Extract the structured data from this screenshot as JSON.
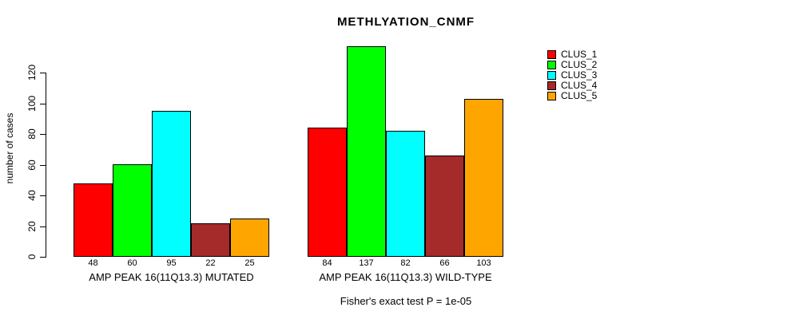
{
  "title": "METHLYATION_CNMF",
  "ylabel": "number of cases",
  "annotation": "Fisher's exact test P = 1e-05",
  "chart_data": {
    "type": "bar",
    "title": "METHLYATION_CNMF",
    "ylabel": "number of cases",
    "yticks": [
      0,
      20,
      40,
      60,
      80,
      100,
      120
    ],
    "ylim": [
      0,
      140
    ],
    "grid": false,
    "legend_position": "top-right",
    "series": [
      {
        "name": "CLUS_1",
        "color": "#FF0000"
      },
      {
        "name": "CLUS_2",
        "color": "#00FF00"
      },
      {
        "name": "CLUS_3",
        "color": "#00FFFF"
      },
      {
        "name": "CLUS_4",
        "color": "#A52A2A"
      },
      {
        "name": "CLUS_5",
        "color": "#FFA500"
      }
    ],
    "groups": [
      {
        "label": "AMP PEAK 16(11Q13.3) MUTATED",
        "values": [
          48,
          60,
          95,
          22,
          25
        ]
      },
      {
        "label": "AMP PEAK 16(11Q13.3) WILD-TYPE",
        "values": [
          84,
          137,
          82,
          66,
          103
        ]
      }
    ],
    "annotation": "Fisher's exact test P = 1e-05"
  }
}
